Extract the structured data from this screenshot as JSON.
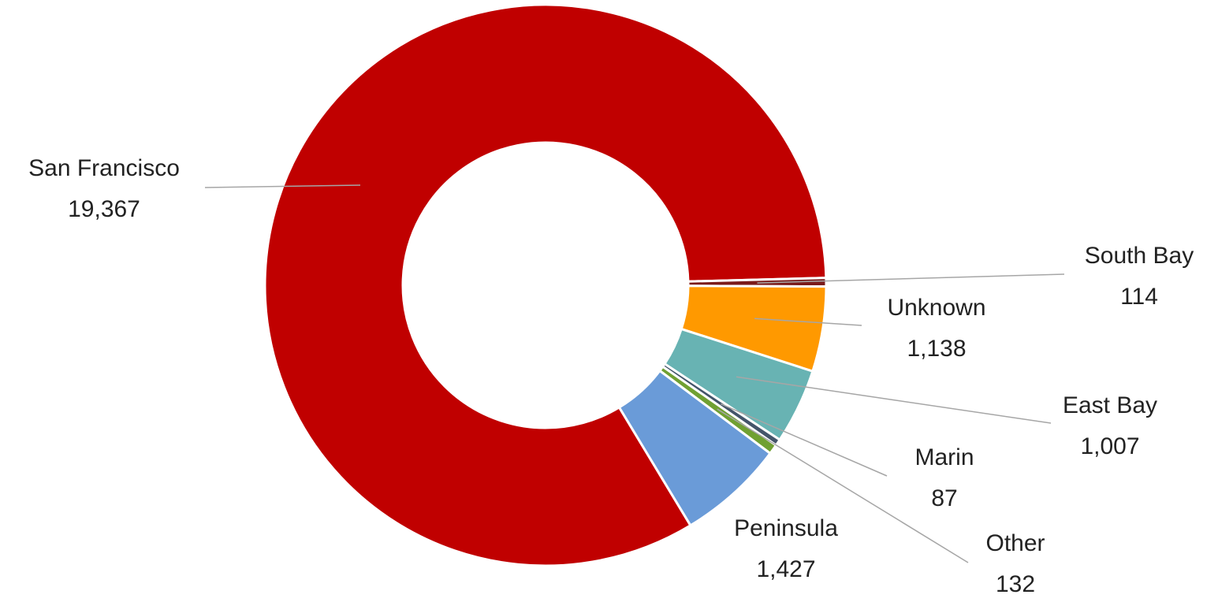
{
  "chart_data": {
    "type": "donut",
    "categories": [
      "San Francisco",
      "South Bay",
      "Unknown",
      "East Bay",
      "Marin",
      "Other",
      "Peninsula"
    ],
    "values": [
      19367,
      114,
      1138,
      1007,
      87,
      132,
      1427
    ],
    "value_labels": [
      "19,367",
      "114",
      "1,138",
      "1,007",
      "87",
      "132",
      "1,427"
    ],
    "colors": [
      "#c00000",
      "#7b1a1a",
      "#ff9900",
      "#68b3b3",
      "#44546a",
      "#70a032",
      "#6a9bd8"
    ]
  }
}
